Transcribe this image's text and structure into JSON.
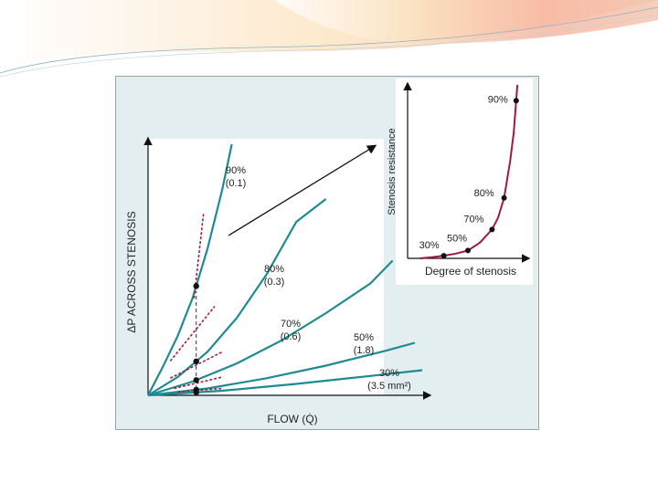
{
  "chart_data": [
    {
      "type": "line",
      "xlabel": "FLOW (Q̇)",
      "ylabel": "ΔP ACROSS STENOSIS",
      "series": [
        {
          "label_pct": "90%",
          "label_val": "(0.1)",
          "points": [
            [
              0,
              0
            ],
            [
              0.2,
              0.25
            ],
            [
              0.4,
              0.52
            ],
            [
              0.6,
              0.85
            ],
            [
              0.8,
              1.28
            ],
            [
              1.0,
              1.8
            ],
            [
              1.13,
              2.2
            ]
          ]
        },
        {
          "label_pct": "80%",
          "label_val": "(0.3)",
          "points": [
            [
              0,
              0
            ],
            [
              0.4,
              0.16
            ],
            [
              0.8,
              0.38
            ],
            [
              1.2,
              0.68
            ],
            [
              1.6,
              1.06
            ],
            [
              2.0,
              1.52
            ],
            [
              2.4,
              1.72
            ]
          ]
        },
        {
          "label_pct": "70%",
          "label_val": "(0.6)",
          "points": [
            [
              0,
              0
            ],
            [
              0.6,
              0.12
            ],
            [
              1.2,
              0.28
            ],
            [
              1.8,
              0.48
            ],
            [
              2.4,
              0.72
            ],
            [
              3.0,
              0.98
            ],
            [
              3.3,
              1.18
            ]
          ]
        },
        {
          "label_pct": "50%",
          "label_val": "(1.8)",
          "points": [
            [
              0,
              0
            ],
            [
              0.8,
              0.06
            ],
            [
              1.6,
              0.15
            ],
            [
              2.4,
              0.26
            ],
            [
              3.2,
              0.39
            ],
            [
              3.6,
              0.46
            ]
          ]
        },
        {
          "label_pct": "30%",
          "label_val": "(3.5 mm²)",
          "points": [
            [
              0,
              0
            ],
            [
              1.0,
              0.04
            ],
            [
              2.0,
              0.1
            ],
            [
              3.0,
              0.17
            ],
            [
              3.7,
              0.22
            ]
          ]
        }
      ],
      "reference_flow": 0.65,
      "operating_points": [
        0.88,
        0.51,
        0.26,
        0.11,
        0.05
      ],
      "tangent_lines": [
        [
          [
            0.62,
            0.85
          ],
          [
            0.75,
            1.6
          ]
        ],
        [
          [
            0.3,
            0.3
          ],
          [
            0.9,
            0.78
          ]
        ],
        [
          [
            0.3,
            0.15
          ],
          [
            1.0,
            0.38
          ]
        ],
        [
          [
            0.35,
            0.06
          ],
          [
            1.0,
            0.16
          ]
        ],
        [
          [
            0.4,
            0.03
          ],
          [
            1.0,
            0.06
          ]
        ]
      ],
      "ylim": [
        0,
        2.2
      ],
      "xlim": [
        0,
        3.7
      ]
    },
    {
      "type": "line",
      "xlabel": "Degree of stenosis",
      "ylabel": "Stenosis resistance",
      "points": [
        {
          "x": 30,
          "y": 1.0,
          "label": "30%"
        },
        {
          "x": 50,
          "y": 3.0,
          "label": "50%"
        },
        {
          "x": 70,
          "y": 11.0,
          "label": "70%"
        },
        {
          "x": 80,
          "y": 23.0,
          "label": "80%"
        },
        {
          "x": 90,
          "y": 60.0,
          "label": "90%"
        }
      ],
      "curve": [
        [
          10,
          0
        ],
        [
          20,
          0.4
        ],
        [
          30,
          1.0
        ],
        [
          40,
          1.8
        ],
        [
          50,
          3.0
        ],
        [
          60,
          6.0
        ],
        [
          70,
          11.0
        ],
        [
          75,
          15.5
        ],
        [
          80,
          23.0
        ],
        [
          85,
          37.0
        ],
        [
          88,
          48.0
        ],
        [
          90,
          60.0
        ],
        [
          91,
          66.0
        ]
      ],
      "xlim": [
        0,
        100
      ],
      "ylim": [
        0,
        66
      ]
    }
  ],
  "colors": {
    "curve_teal": "#1e8a93",
    "curve_magenta": "#9c1a4a",
    "tangent_red": "#a02040",
    "panel_bg": "#e3eef1",
    "inset_bg": "#ffffff"
  }
}
